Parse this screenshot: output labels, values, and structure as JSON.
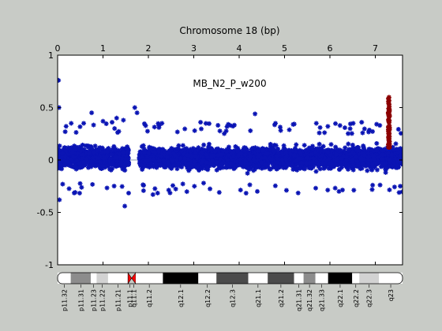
{
  "chart_data": {
    "type": "scatter",
    "title": "Chromosome 18 (bp)",
    "annotation": "MB_N2_P_w200",
    "xlabel": "",
    "ylabel": "",
    "x_axis_position": "top",
    "xlim": [
      0,
      7.6
    ],
    "ylim": [
      -1,
      1
    ],
    "x_ticks": [
      0,
      1,
      2,
      3,
      4,
      5,
      6,
      7
    ],
    "y_ticks": [
      1,
      0.5,
      0,
      -0.5,
      -1
    ],
    "y_tick_labels": [
      "1",
      "0.5",
      "0",
      "-0.5",
      "-1"
    ],
    "grid": false,
    "zero_line": true,
    "colors": {
      "normal": "#0a14b4",
      "highlight": "#8b0000",
      "zero_line": "#8a9bb0",
      "background": "#c8cbc6",
      "plot_bg": "#ffffff"
    },
    "series": [
      {
        "color_key": "normal",
        "x_range": [
          0,
          1.57
        ],
        "x_range_2": [
          1.8,
          7.6
        ],
        "band": [
          -0.22,
          0.25
        ],
        "outliers": [
          {
            "x": 0.02,
            "y": 0.76
          },
          {
            "x": 0.03,
            "y": 0.5
          },
          {
            "x": 0.04,
            "y": -0.38
          },
          {
            "x": 0.3,
            "y": 0.35
          },
          {
            "x": 0.75,
            "y": 0.45
          },
          {
            "x": 1.0,
            "y": 0.37
          },
          {
            "x": 1.2,
            "y": 0.36
          },
          {
            "x": 1.3,
            "y": 0.4
          },
          {
            "x": 1.45,
            "y": 0.38
          },
          {
            "x": 1.48,
            "y": -0.44
          },
          {
            "x": 1.7,
            "y": 0.5
          },
          {
            "x": 1.75,
            "y": 0.45
          },
          {
            "x": 2.1,
            "y": -0.33
          },
          {
            "x": 2.3,
            "y": 0.35
          },
          {
            "x": 3.15,
            "y": 0.36
          },
          {
            "x": 3.8,
            "y": 0.33
          },
          {
            "x": 4.35,
            "y": 0.44
          },
          {
            "x": 4.4,
            "y": -0.3
          },
          {
            "x": 4.8,
            "y": 0.35
          },
          {
            "x": 5.7,
            "y": 0.35
          },
          {
            "x": 6.2,
            "y": -0.3
          },
          {
            "x": 6.7,
            "y": 0.36
          },
          {
            "x": 7.1,
            "y": 0.33
          },
          {
            "x": 7.55,
            "y": -0.25
          }
        ]
      },
      {
        "color_key": "highlight",
        "x_center": 7.3,
        "x_spread": 0.015,
        "band": [
          0.12,
          0.62
        ]
      }
    ],
    "ideogram": {
      "bands": [
        {
          "label": "p11.32",
          "start": 0.0,
          "end": 0.29,
          "stain": "white"
        },
        {
          "label": "p11.31",
          "start": 0.29,
          "end": 0.73,
          "stain": "gray"
        },
        {
          "label": "p11.23",
          "start": 0.73,
          "end": 0.86,
          "stain": "white"
        },
        {
          "label": "p11.22",
          "start": 0.86,
          "end": 1.11,
          "stain": "lightgray"
        },
        {
          "label": "p11.21",
          "start": 1.11,
          "end": 1.55,
          "stain": "white"
        },
        {
          "label": "p11.1",
          "start": 1.55,
          "end": 1.63,
          "stain": "centromere"
        },
        {
          "label": "q11.1",
          "start": 1.63,
          "end": 1.72,
          "stain": "centromere"
        },
        {
          "label": "q11.2",
          "start": 1.72,
          "end": 2.32,
          "stain": "white"
        },
        {
          "label": "q12.1",
          "start": 2.32,
          "end": 3.1,
          "stain": "black"
        },
        {
          "label": "q12.2",
          "start": 3.1,
          "end": 3.5,
          "stain": "white"
        },
        {
          "label": "q12.3",
          "start": 3.5,
          "end": 4.2,
          "stain": "darkgray"
        },
        {
          "label": "q21.1",
          "start": 4.2,
          "end": 4.63,
          "stain": "white"
        },
        {
          "label": "q21.2",
          "start": 4.63,
          "end": 5.21,
          "stain": "darkgray"
        },
        {
          "label": "q21.31",
          "start": 5.21,
          "end": 5.42,
          "stain": "white"
        },
        {
          "label": "q21.32",
          "start": 5.42,
          "end": 5.68,
          "stain": "gray"
        },
        {
          "label": "q21.33",
          "start": 5.68,
          "end": 5.96,
          "stain": "white"
        },
        {
          "label": "q22.1",
          "start": 5.96,
          "end": 6.49,
          "stain": "black"
        },
        {
          "label": "q22.2",
          "start": 6.49,
          "end": 6.65,
          "stain": "white"
        },
        {
          "label": "q22.3",
          "start": 6.65,
          "end": 7.08,
          "stain": "lightgray"
        },
        {
          "label": "q23",
          "start": 7.08,
          "end": 7.6,
          "stain": "white"
        }
      ],
      "stain_colors": {
        "white": "#ffffff",
        "lightgray": "#d2d2d2",
        "gray": "#8c8c8c",
        "darkgray": "#4b4b4b",
        "black": "#000000",
        "centromere": "#ff0000"
      }
    }
  }
}
